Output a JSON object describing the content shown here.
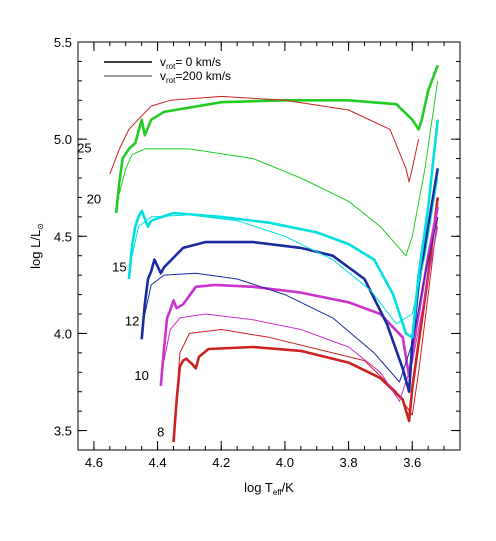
{
  "chart_data": {
    "type": "line",
    "title": "",
    "xlabel": "log T",
    "xlabel_sub": "eff",
    "xlabel_tail": "/K",
    "ylabel": "log L",
    "ylabel_tail": "/L",
    "ylabel_sub": "⊙",
    "xlim": [
      4.65,
      3.45
    ],
    "ylim": [
      3.4,
      5.5
    ],
    "x_ticks": [
      4.6,
      4.4,
      4.2,
      4.0,
      3.8,
      3.6
    ],
    "x_tick_labels": [
      "4.6",
      "4.4",
      "4.2",
      "4.0",
      "3.8",
      "3.6"
    ],
    "y_ticks": [
      3.5,
      4.0,
      4.5,
      5.0,
      5.5
    ],
    "y_tick_labels": [
      "3.5",
      "4.0",
      "4.5",
      "5.0",
      "5.5"
    ],
    "grid": false,
    "legend_position": "top-left",
    "legend": [
      {
        "prefix": "v",
        "sub": "rot",
        "text": "=   0 km/s",
        "style": "thick"
      },
      {
        "prefix": "v",
        "sub": "rot",
        "text": "=200 km/s",
        "style": "thin"
      }
    ],
    "series": [
      {
        "mass": "8",
        "color": "#cc2222",
        "thick": [
          [
            4.35,
            3.44
          ],
          [
            4.34,
            3.66
          ],
          [
            4.33,
            3.83
          ],
          [
            4.32,
            3.86
          ],
          [
            4.31,
            3.87
          ],
          [
            4.29,
            3.84
          ],
          [
            4.28,
            3.82
          ],
          [
            4.27,
            3.88
          ],
          [
            4.24,
            3.92
          ],
          [
            4.1,
            3.93
          ],
          [
            3.95,
            3.91
          ],
          [
            3.8,
            3.85
          ],
          [
            3.7,
            3.77
          ],
          [
            3.63,
            3.66
          ],
          [
            3.61,
            3.55
          ],
          [
            3.6,
            3.72
          ],
          [
            3.58,
            3.95
          ],
          [
            3.55,
            4.3
          ],
          [
            3.52,
            4.7
          ]
        ],
        "thin": [
          [
            4.34,
            3.68
          ],
          [
            4.33,
            3.9
          ],
          [
            4.3,
            4.0
          ],
          [
            4.2,
            4.02
          ],
          [
            4.05,
            3.98
          ],
          [
            3.9,
            3.92
          ],
          [
            3.75,
            3.86
          ],
          [
            3.65,
            3.7
          ],
          [
            3.6,
            3.58
          ],
          [
            3.58,
            3.8
          ],
          [
            3.55,
            4.2
          ],
          [
            3.52,
            4.6
          ]
        ]
      },
      {
        "mass": "10",
        "color": "#cc33cc",
        "thick": [
          [
            4.39,
            3.73
          ],
          [
            4.38,
            3.92
          ],
          [
            4.37,
            4.08
          ],
          [
            4.36,
            4.12
          ],
          [
            4.35,
            4.17
          ],
          [
            4.34,
            4.13
          ],
          [
            4.32,
            4.15
          ],
          [
            4.28,
            4.24
          ],
          [
            4.22,
            4.25
          ],
          [
            4.1,
            4.24
          ],
          [
            3.95,
            4.21
          ],
          [
            3.8,
            4.16
          ],
          [
            3.7,
            4.1
          ],
          [
            3.63,
            3.98
          ],
          [
            3.61,
            3.78
          ],
          [
            3.6,
            3.9
          ],
          [
            3.58,
            4.1
          ],
          [
            3.55,
            4.4
          ],
          [
            3.52,
            4.65
          ]
        ],
        "thin": [
          [
            4.38,
            3.86
          ],
          [
            4.36,
            4.02
          ],
          [
            4.33,
            4.08
          ],
          [
            4.25,
            4.1
          ],
          [
            4.1,
            4.07
          ],
          [
            3.95,
            4.02
          ],
          [
            3.8,
            3.93
          ],
          [
            3.7,
            3.8
          ],
          [
            3.64,
            3.65
          ],
          [
            3.6,
            3.85
          ],
          [
            3.56,
            4.2
          ],
          [
            3.52,
            4.55
          ]
        ]
      },
      {
        "mass": "12",
        "color": "#1a2aa0",
        "thick": [
          [
            4.45,
            3.97
          ],
          [
            4.44,
            4.15
          ],
          [
            4.43,
            4.28
          ],
          [
            4.42,
            4.32
          ],
          [
            4.41,
            4.38
          ],
          [
            4.39,
            4.31
          ],
          [
            4.38,
            4.34
          ],
          [
            4.32,
            4.44
          ],
          [
            4.25,
            4.47
          ],
          [
            4.1,
            4.47
          ],
          [
            3.95,
            4.44
          ],
          [
            3.85,
            4.4
          ],
          [
            3.75,
            4.28
          ],
          [
            3.68,
            4.05
          ],
          [
            3.63,
            3.82
          ],
          [
            3.61,
            3.7
          ],
          [
            3.6,
            3.95
          ],
          [
            3.58,
            4.25
          ],
          [
            3.55,
            4.55
          ],
          [
            3.52,
            4.85
          ]
        ],
        "thin": [
          [
            4.44,
            4.1
          ],
          [
            4.42,
            4.25
          ],
          [
            4.38,
            4.3
          ],
          [
            4.28,
            4.31
          ],
          [
            4.15,
            4.28
          ],
          [
            4.0,
            4.2
          ],
          [
            3.85,
            4.08
          ],
          [
            3.72,
            3.9
          ],
          [
            3.64,
            3.75
          ],
          [
            3.6,
            3.95
          ],
          [
            3.56,
            4.3
          ],
          [
            3.52,
            4.6
          ]
        ]
      },
      {
        "mass": "15",
        "color": "#00e0e0",
        "thick": [
          [
            4.49,
            4.28
          ],
          [
            4.48,
            4.45
          ],
          [
            4.47,
            4.55
          ],
          [
            4.46,
            4.6
          ],
          [
            4.45,
            4.63
          ],
          [
            4.43,
            4.55
          ],
          [
            4.42,
            4.58
          ],
          [
            4.35,
            4.62
          ],
          [
            4.2,
            4.6
          ],
          [
            4.05,
            4.57
          ],
          [
            3.9,
            4.52
          ],
          [
            3.8,
            4.46
          ],
          [
            3.72,
            4.38
          ],
          [
            3.66,
            4.2
          ],
          [
            3.62,
            4.0
          ],
          [
            3.6,
            3.98
          ],
          [
            3.58,
            4.3
          ],
          [
            3.55,
            4.65
          ],
          [
            3.52,
            5.1
          ]
        ],
        "thin": [
          [
            4.48,
            4.4
          ],
          [
            4.46,
            4.55
          ],
          [
            4.42,
            4.6
          ],
          [
            4.3,
            4.61
          ],
          [
            4.15,
            4.58
          ],
          [
            4.0,
            4.5
          ],
          [
            3.85,
            4.38
          ],
          [
            3.73,
            4.22
          ],
          [
            3.65,
            4.05
          ],
          [
            3.6,
            4.1
          ],
          [
            3.56,
            4.4
          ],
          [
            3.52,
            4.8
          ]
        ]
      },
      {
        "mass": "20",
        "color": "#22cc22",
        "thick": [
          [
            4.53,
            4.62
          ],
          [
            4.52,
            4.78
          ],
          [
            4.51,
            4.9
          ],
          [
            4.49,
            4.95
          ],
          [
            4.47,
            4.98
          ],
          [
            4.45,
            5.1
          ],
          [
            4.44,
            5.02
          ],
          [
            4.42,
            5.1
          ],
          [
            4.38,
            5.14
          ],
          [
            4.2,
            5.19
          ],
          [
            4.0,
            5.2
          ],
          [
            3.8,
            5.2
          ],
          [
            3.65,
            5.18
          ],
          [
            3.6,
            5.1
          ],
          [
            3.58,
            5.05
          ],
          [
            3.57,
            5.1
          ],
          [
            3.55,
            5.25
          ],
          [
            3.52,
            5.38
          ]
        ],
        "thin": [
          [
            4.52,
            4.72
          ],
          [
            4.5,
            4.85
          ],
          [
            4.48,
            4.92
          ],
          [
            4.44,
            4.95
          ],
          [
            4.3,
            4.95
          ],
          [
            4.1,
            4.9
          ],
          [
            3.95,
            4.8
          ],
          [
            3.8,
            4.68
          ],
          [
            3.7,
            4.55
          ],
          [
            3.62,
            4.4
          ],
          [
            3.6,
            4.5
          ],
          [
            3.56,
            4.85
          ],
          [
            3.52,
            5.3
          ]
        ]
      },
      {
        "mass": "25",
        "color": "#cc2222",
        "thick": [],
        "thin": [
          [
            4.55,
            4.82
          ],
          [
            4.52,
            4.95
          ],
          [
            4.49,
            5.05
          ],
          [
            4.45,
            5.12
          ],
          [
            4.42,
            5.17
          ],
          [
            4.36,
            5.2
          ],
          [
            4.2,
            5.22
          ],
          [
            4.0,
            5.2
          ],
          [
            3.8,
            5.15
          ],
          [
            3.67,
            5.05
          ],
          [
            3.62,
            4.85
          ],
          [
            3.61,
            4.78
          ],
          [
            3.6,
            4.85
          ],
          [
            3.58,
            5.0
          ]
        ]
      }
    ],
    "mass_label_anchor": [
      {
        "mass": "8",
        "x": 4.39,
        "y": 3.47
      },
      {
        "mass": "10",
        "x": 4.45,
        "y": 3.76
      },
      {
        "mass": "12",
        "x": 4.48,
        "y": 4.04
      },
      {
        "mass": "15",
        "x": 4.52,
        "y": 4.32
      },
      {
        "mass": "20",
        "x": 4.6,
        "y": 4.67
      },
      {
        "mass": "25",
        "x": 4.63,
        "y": 4.93
      }
    ]
  }
}
